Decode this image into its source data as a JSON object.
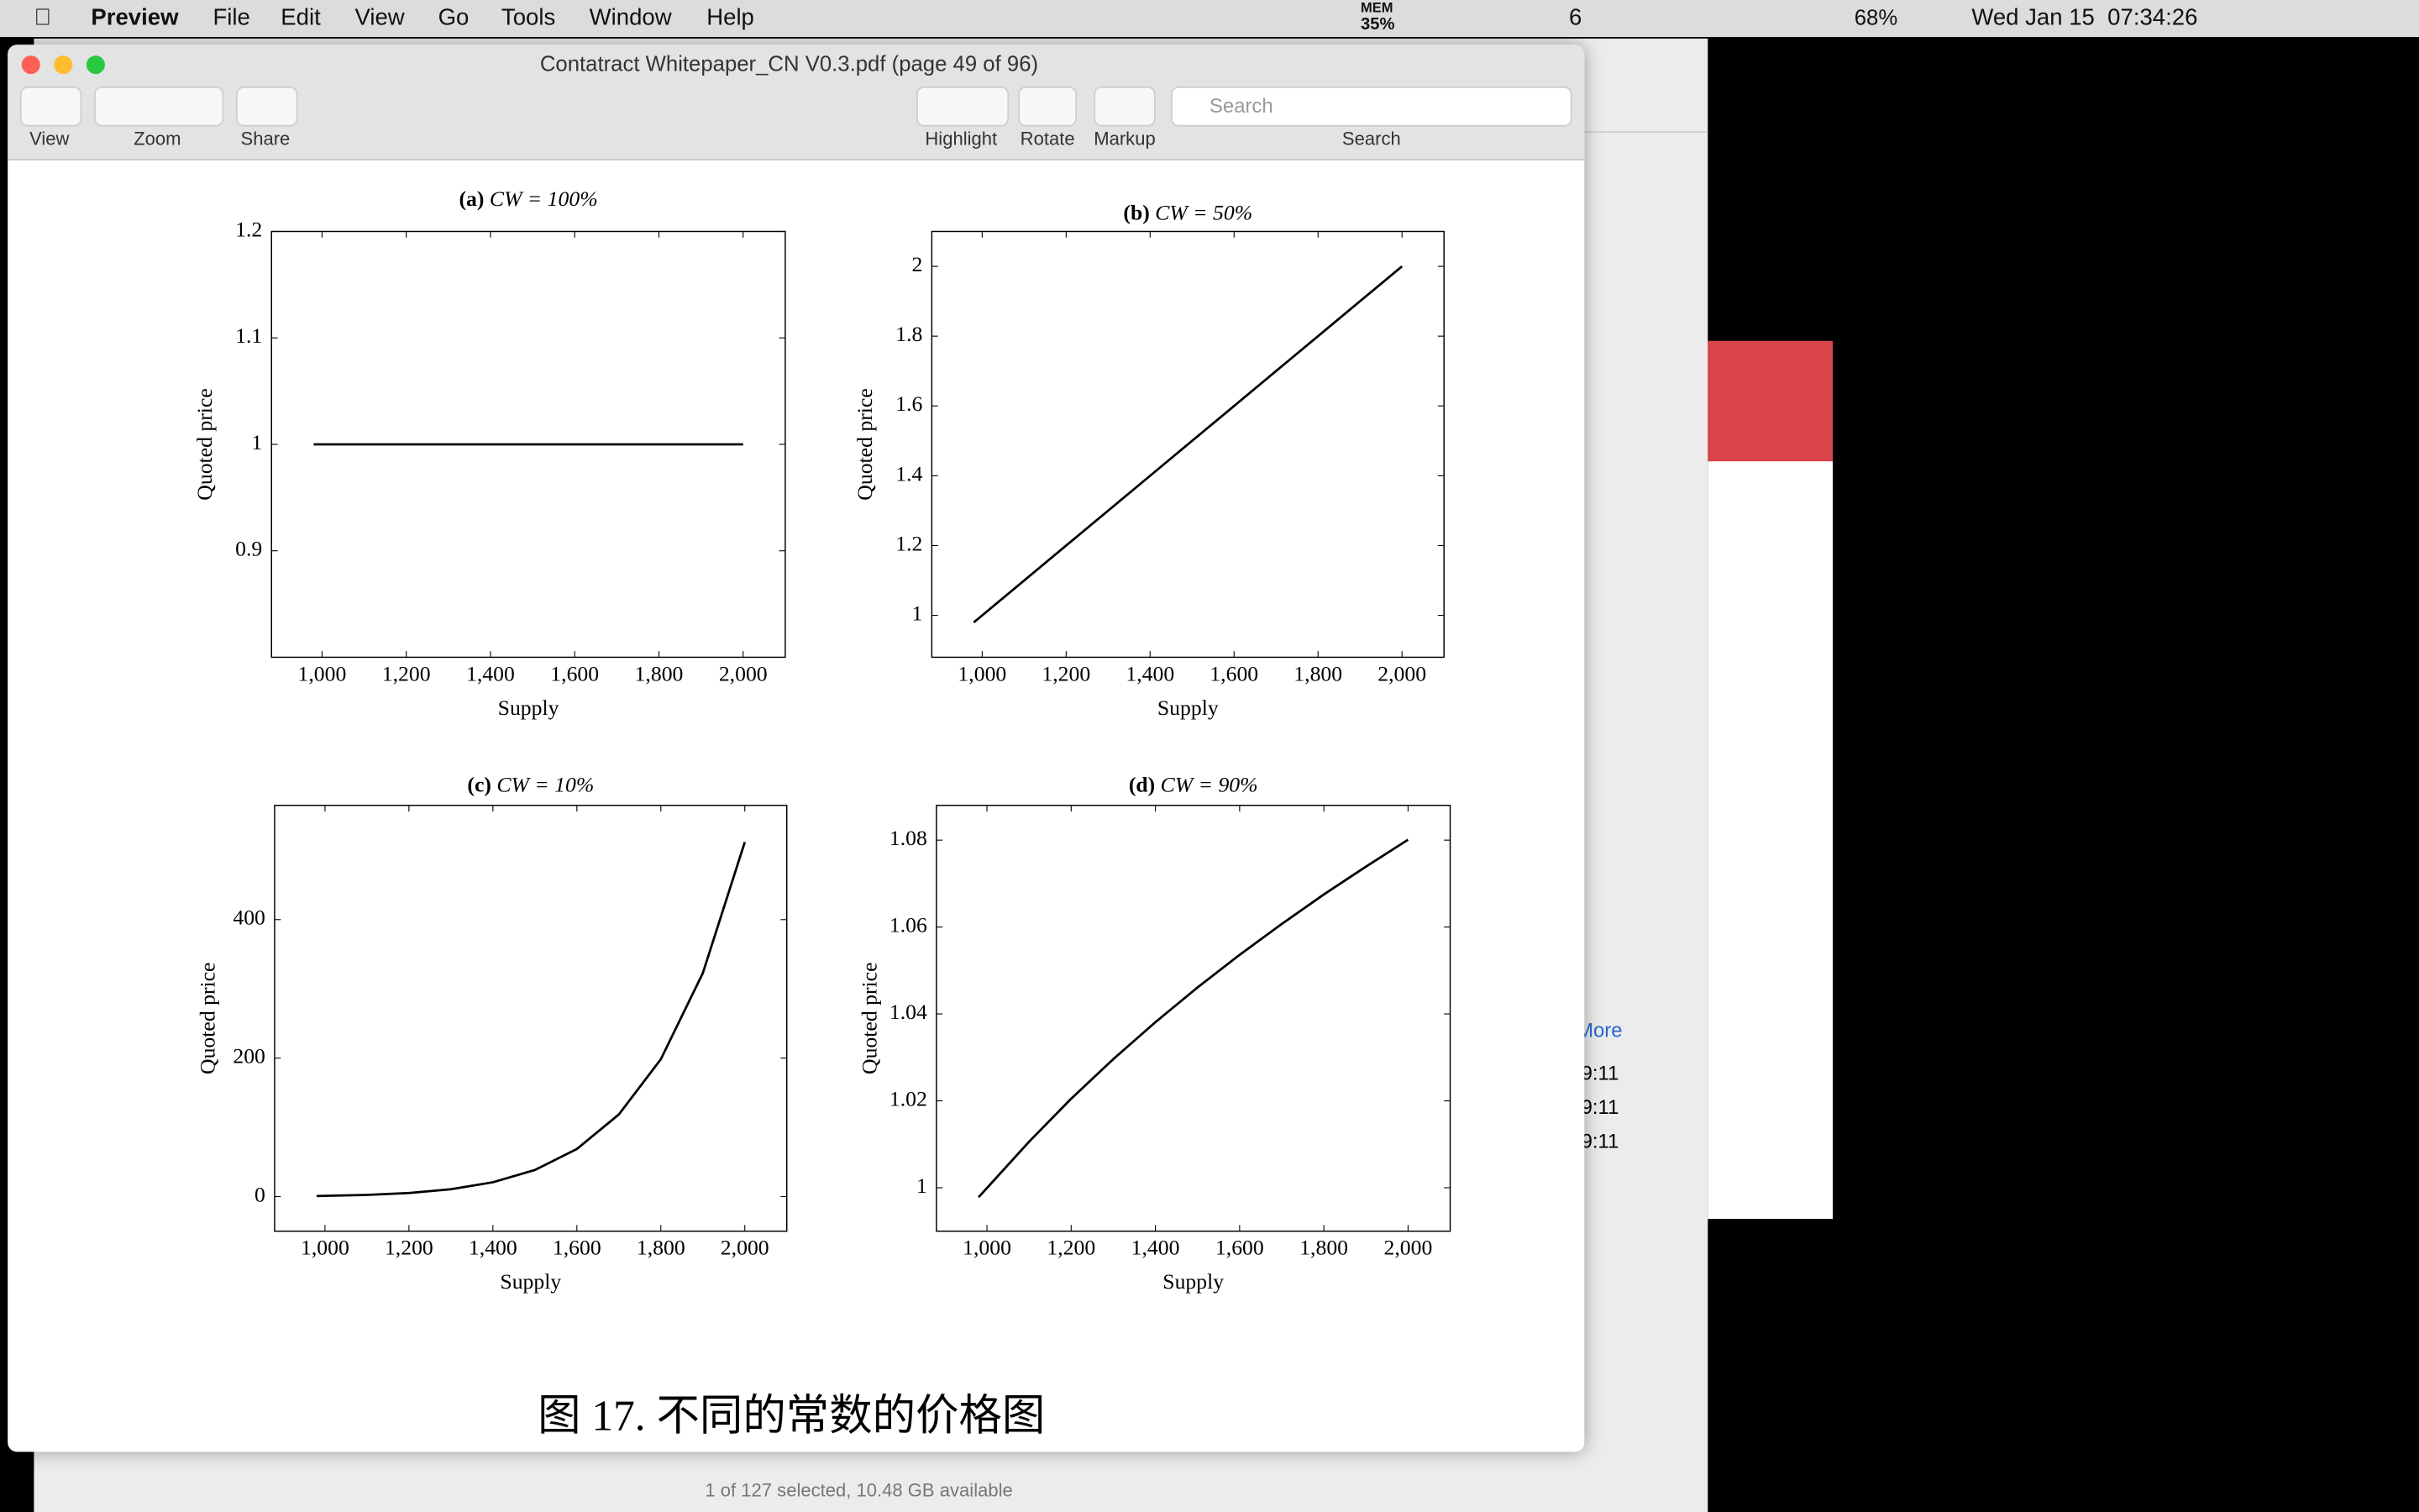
{
  "menu_bar": {
    "app": "Preview",
    "items": [
      "File",
      "Edit",
      "View",
      "Go",
      "Tools",
      "Window",
      "Help"
    ],
    "status": {
      "mem_label": "MEM",
      "mem": "35%",
      "wechat": "6",
      "battery": "68%",
      "clock": "Wed Jan 15  07:34:26"
    }
  },
  "window": {
    "title": "Contatract Whitepaper_CN V0.3.pdf (page 49 of 96)",
    "toolbar": {
      "labels": [
        "View",
        "Zoom",
        "Share",
        "Highlight",
        "Rotate",
        "Markup",
        "Search"
      ],
      "search_placeholder": "Search"
    }
  },
  "chart_data": [
    {
      "type": "line",
      "panel": "(a)",
      "title": "CW = 100%",
      "xlabel": "Supply",
      "ylabel": "Quoted price",
      "color": "#000000",
      "x": [
        980,
        1100,
        1200,
        1300,
        1400,
        1500,
        1600,
        1700,
        1800,
        1900,
        2000
      ],
      "values": [
        1,
        1,
        1,
        1,
        1,
        1,
        1,
        1,
        1,
        1,
        1
      ],
      "xlim": [
        880,
        2100
      ],
      "ylim": [
        0.8,
        1.2
      ],
      "xticks": [
        {
          "value": 1000,
          "label": "1,000"
        },
        {
          "value": 1200,
          "label": "1,200"
        },
        {
          "value": 1400,
          "label": "1,400"
        },
        {
          "value": 1600,
          "label": "1,600"
        },
        {
          "value": 1800,
          "label": "1,800"
        },
        {
          "value": 2000,
          "label": "2,000"
        }
      ],
      "yticks": [
        0.9,
        1,
        1.1,
        1.2
      ]
    },
    {
      "type": "line",
      "panel": "(b)",
      "title": "CW = 50%",
      "xlabel": "Supply",
      "ylabel": "Quoted price",
      "color": "#000000",
      "x": [
        980,
        1100,
        1200,
        1300,
        1400,
        1500,
        1600,
        1700,
        1800,
        1900,
        2000
      ],
      "values": [
        0.98,
        1.1,
        1.2,
        1.3,
        1.4,
        1.5,
        1.6,
        1.7,
        1.8,
        1.9,
        2
      ],
      "xlim": [
        880,
        2100
      ],
      "ylim": [
        0.88,
        2.1
      ],
      "xticks": [
        {
          "value": 1000,
          "label": "1,000"
        },
        {
          "value": 1200,
          "label": "1,200"
        },
        {
          "value": 1400,
          "label": "1,400"
        },
        {
          "value": 1600,
          "label": "1,600"
        },
        {
          "value": 1800,
          "label": "1,800"
        },
        {
          "value": 2000,
          "label": "2,000"
        }
      ],
      "yticks": [
        1,
        1.2,
        1.4,
        1.6,
        1.8,
        2
      ]
    },
    {
      "type": "line",
      "panel": "(c)",
      "title": "CW = 10%",
      "xlabel": "Supply",
      "ylabel": "Quoted price",
      "color": "#000000",
      "x": [
        980,
        1100,
        1200,
        1300,
        1400,
        1500,
        1600,
        1700,
        1800,
        1900,
        2000
      ],
      "values": [
        0.8,
        2.4,
        5.2,
        10.6,
        20.7,
        38.4,
        68.7,
        118.6,
        198.4,
        322.7,
        512
      ],
      "xlim": [
        880,
        2100
      ],
      "ylim": [
        -50,
        565
      ],
      "xticks": [
        {
          "value": 1000,
          "label": "1,000"
        },
        {
          "value": 1200,
          "label": "1,200"
        },
        {
          "value": 1400,
          "label": "1,400"
        },
        {
          "value": 1600,
          "label": "1,600"
        },
        {
          "value": 1800,
          "label": "1,800"
        },
        {
          "value": 2000,
          "label": "2,000"
        }
      ],
      "yticks": [
        0,
        200,
        400
      ]
    },
    {
      "type": "line",
      "panel": "(d)",
      "title": "CW = 90%",
      "xlabel": "Supply",
      "ylabel": "Quoted price",
      "color": "#000000",
      "x": [
        980,
        1100,
        1200,
        1300,
        1400,
        1500,
        1600,
        1700,
        1800,
        1900,
        2000
      ],
      "values": [
        0.9978,
        1.0106,
        1.0205,
        1.0296,
        1.0381,
        1.0461,
        1.0536,
        1.0607,
        1.0675,
        1.0739,
        1.0801
      ],
      "xlim": [
        880,
        2100
      ],
      "ylim": [
        0.99,
        1.088
      ],
      "xticks": [
        {
          "value": 1000,
          "label": "1,000"
        },
        {
          "value": 1200,
          "label": "1,200"
        },
        {
          "value": 1400,
          "label": "1,400"
        },
        {
          "value": 1600,
          "label": "1,600"
        },
        {
          "value": 1800,
          "label": "1,800"
        },
        {
          "value": 2000,
          "label": "2,000"
        }
      ],
      "yticks": [
        1,
        1.02,
        1.04,
        1.06,
        1.08
      ]
    }
  ],
  "caption": "图 17. 不同的常数的价格图",
  "background": {
    "status": "1 of 127 selected, 10.48 GB available",
    "link": "More",
    "times": [
      "9:11",
      "9:11",
      "9:11"
    ]
  }
}
